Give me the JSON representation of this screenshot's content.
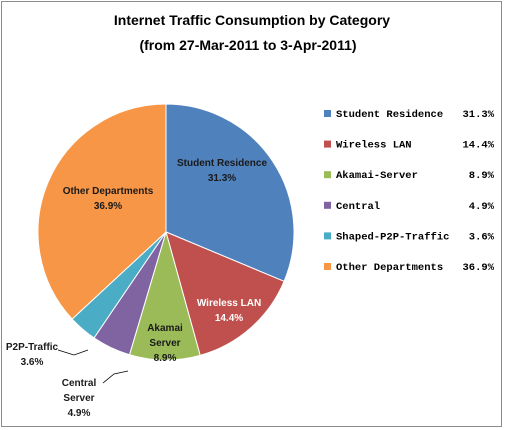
{
  "chart_data": {
    "type": "pie",
    "title": "Internet Traffic Consumption by Category",
    "subtitle": "(from 27-Mar-2011 to 3-Apr-2011)",
    "start_angle_deg": 0,
    "direction": "clockwise",
    "slices": [
      {
        "label": "Student Residence",
        "value": 31.3,
        "value_label": "31.3%",
        "color": "#4F81BD",
        "pie_label": [
          "Student Residence",
          "31.3%"
        ],
        "label_color": "#1a1a1a"
      },
      {
        "label": "Wireless LAN",
        "value": 14.4,
        "value_label": "14.4%",
        "color": "#C0504D",
        "pie_label": [
          "Wireless LAN",
          "14.4%"
        ],
        "label_color": "#ffffff"
      },
      {
        "label": "Akamai-Server",
        "value": 8.9,
        "value_label": "8.9%",
        "color": "#9BBB59",
        "pie_label": [
          "Akamai",
          "Server",
          "8.9%"
        ],
        "label_color": "#1a1a1a"
      },
      {
        "label": "Central",
        "value": 4.9,
        "value_label": "4.9%",
        "color": "#8064A2",
        "pie_label": [
          "Central",
          "Server",
          "4.9%"
        ],
        "label_color": "#1a1a1a"
      },
      {
        "label": "Shaped-P2P-Traffic",
        "value": 3.6,
        "value_label": "3.6%",
        "color": "#4BACC6",
        "pie_label": [
          "P2P-Traffic",
          "3.6%"
        ],
        "label_color": "#1a1a1a"
      },
      {
        "label": "Other Departments",
        "value": 36.9,
        "value_label": "36.9%",
        "color": "#F79646",
        "pie_label": [
          "Other Departments",
          "36.9%"
        ],
        "label_color": "#1a1a1a"
      }
    ],
    "legend_placement": "right"
  }
}
